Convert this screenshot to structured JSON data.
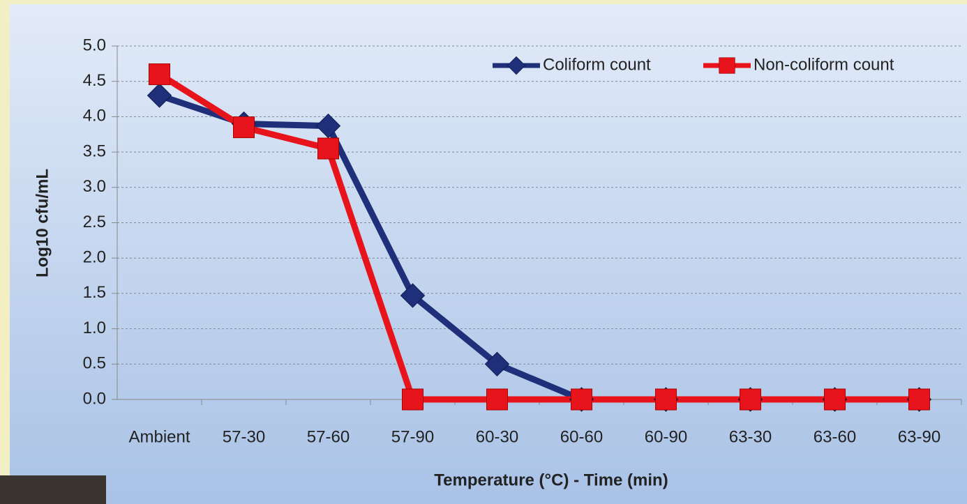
{
  "chart_data": {
    "type": "line",
    "x_label": "Temperature (°C) - Time (min)",
    "y_label": "Log10 cfu/mL",
    "categories": [
      "Ambient",
      "57-30",
      "57-60",
      "57-90",
      "60-30",
      "60-60",
      "60-90",
      "63-30",
      "63-60",
      "63-90"
    ],
    "series": [
      {
        "name": "Coliform count",
        "color": "#1f2f7a",
        "marker": "diamond",
        "values": [
          4.3,
          3.9,
          3.87,
          1.47,
          0.5,
          0,
          0,
          0,
          0,
          0
        ]
      },
      {
        "name": "Non-coliform count",
        "color": "#e8141b",
        "marker": "square",
        "values": [
          4.6,
          3.85,
          3.55,
          0,
          0,
          0,
          0,
          0,
          0,
          0
        ]
      }
    ],
    "ylim": [
      0,
      5
    ],
    "yticks": [
      {
        "value": 0,
        "label": "0.0"
      },
      0.5,
      {
        "value": 1,
        "label": "1.0"
      },
      1.5,
      {
        "value": 2,
        "label": "2.0"
      },
      2.5,
      {
        "value": 3,
        "label": "3.0"
      },
      3.5,
      {
        "value": 4,
        "label": "4.0"
      },
      4.5,
      {
        "value": 5,
        "label": "5.0"
      }
    ],
    "grid": true,
    "legend": "top-right"
  }
}
